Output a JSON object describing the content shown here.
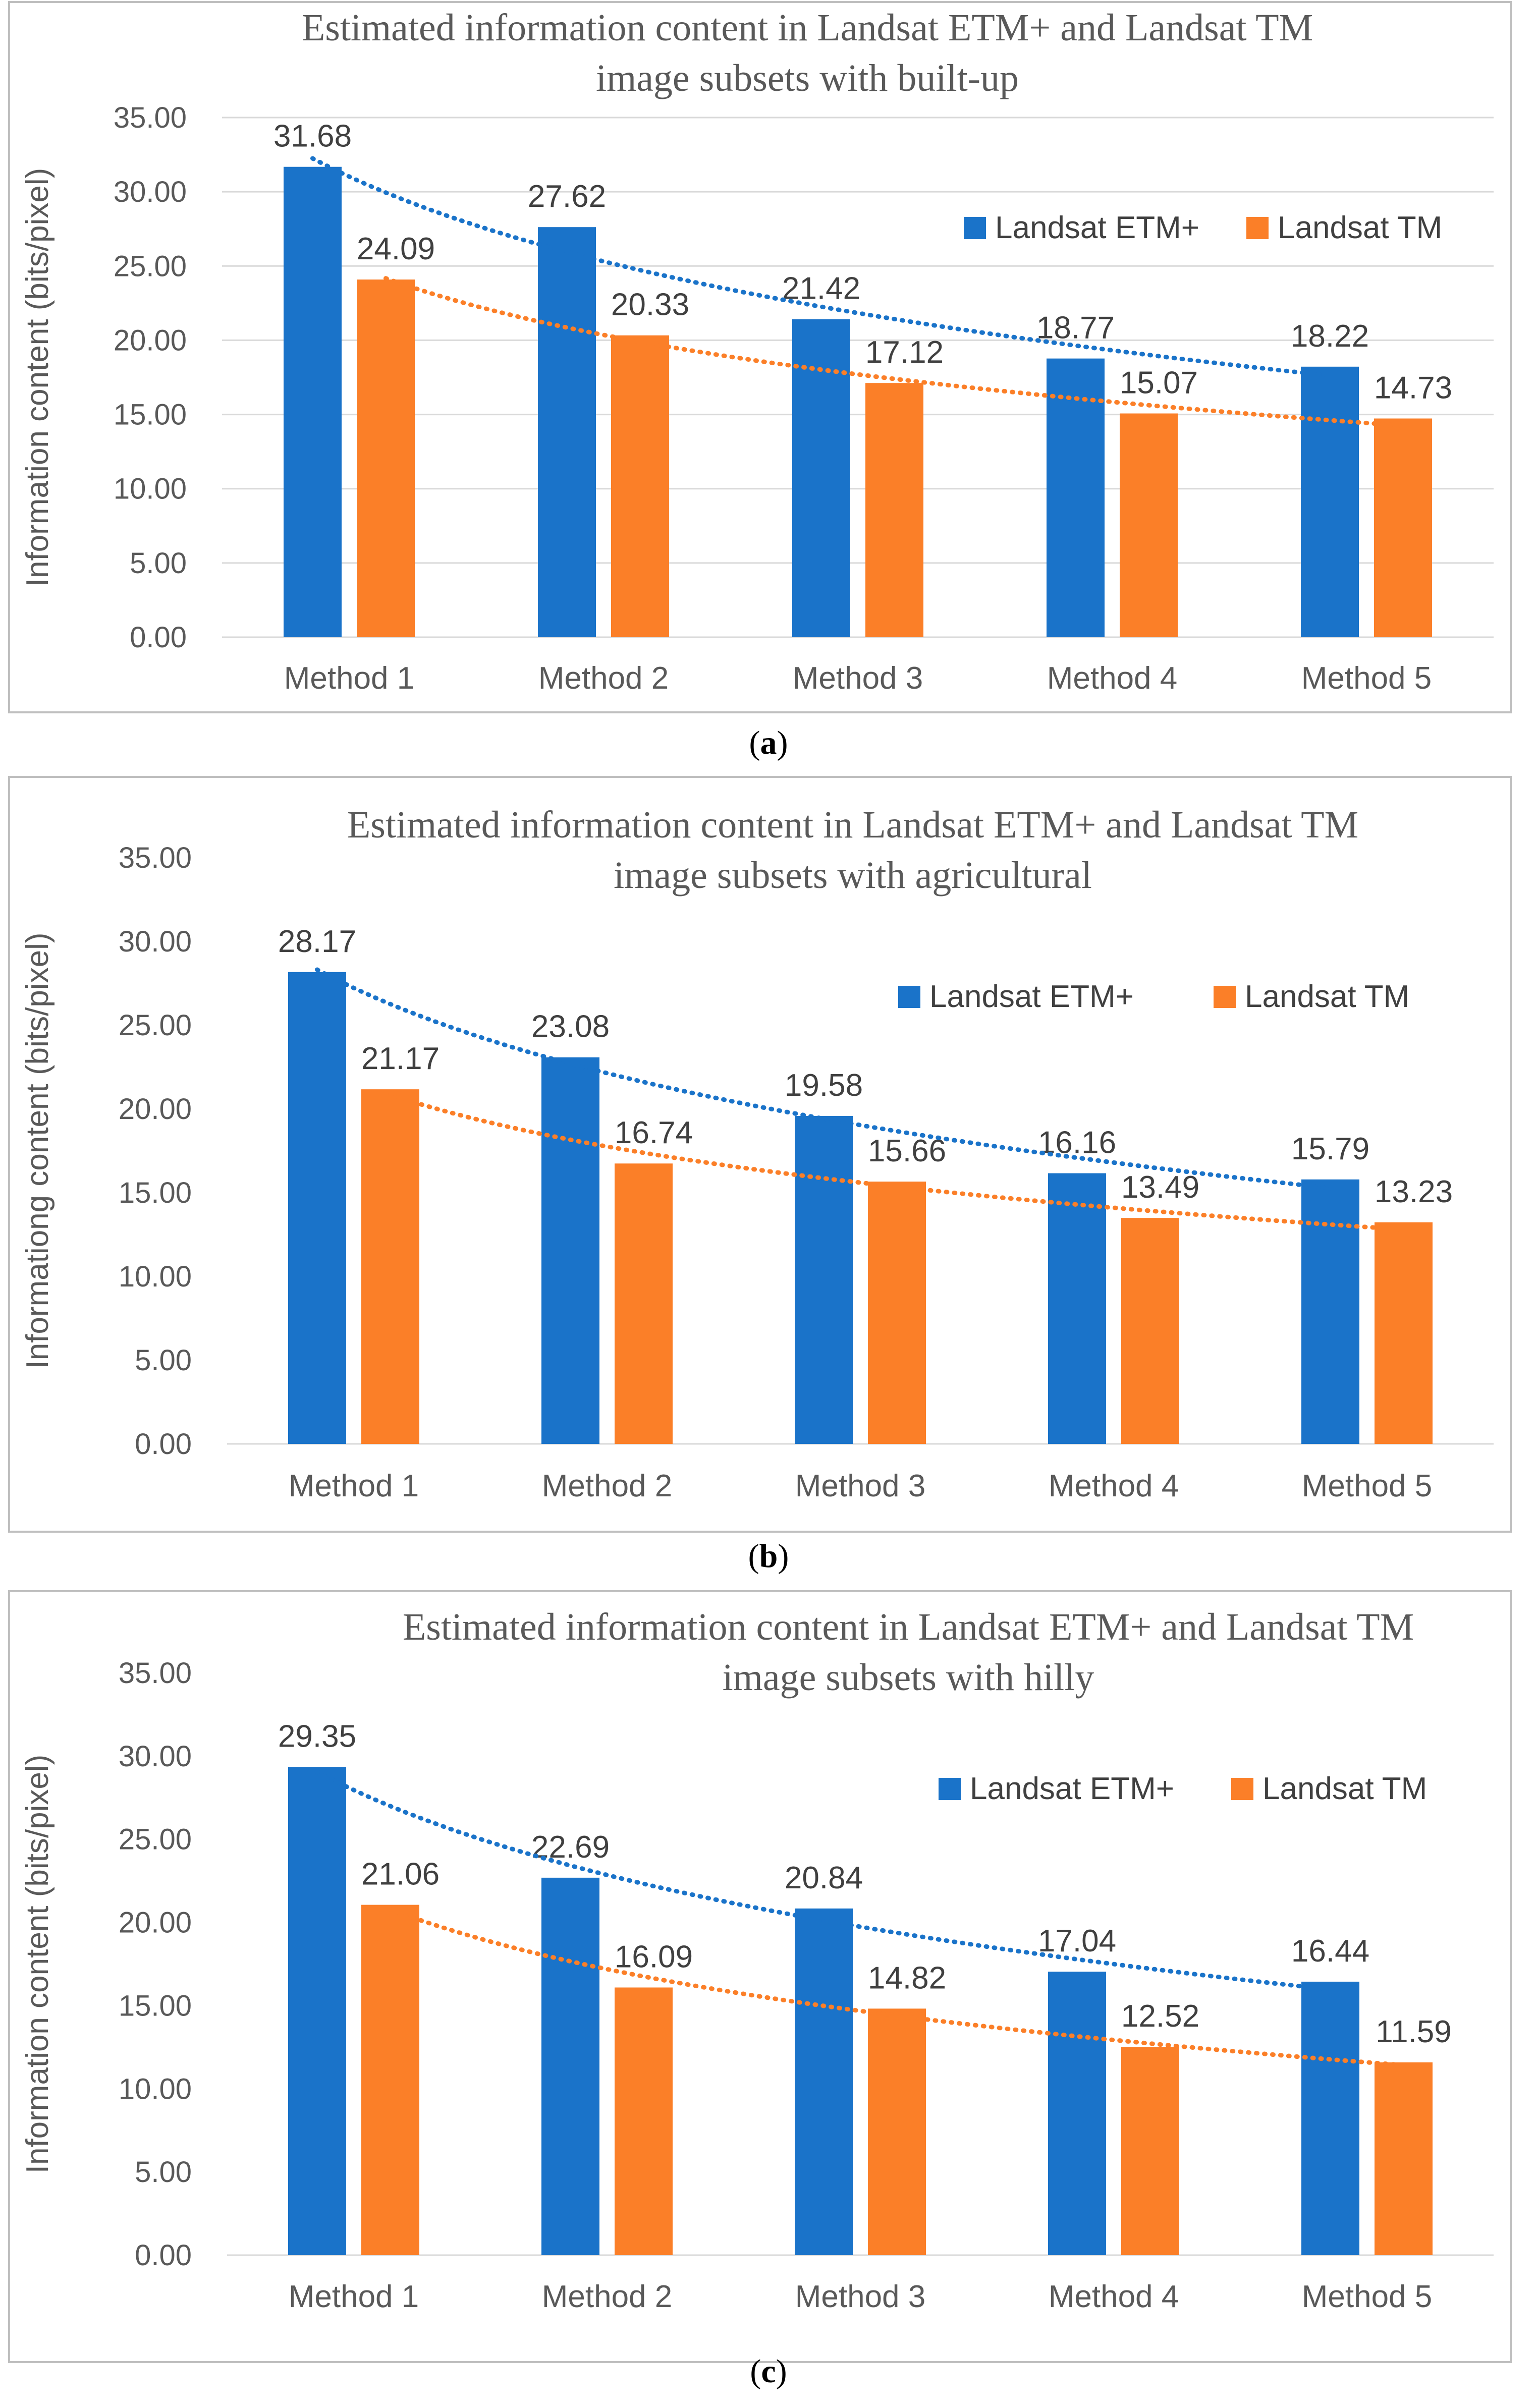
{
  "colors": {
    "etm": "#1a73c9",
    "tm": "#fb7f28",
    "grid": "#d9d9d9",
    "border": "#bfbfbf"
  },
  "chart_data": [
    {
      "type": "bar",
      "title_lines": [
        "Estimated information content in Landsat ETM+ and Landsat TM",
        "image subsets with built-up"
      ],
      "ylabel": "Information content (bits/pixel)",
      "xlabel": "",
      "ylim": [
        0,
        35
      ],
      "yticks": [
        "0.00",
        "5.00",
        "10.00",
        "15.00",
        "20.00",
        "25.00",
        "30.00",
        "35.00"
      ],
      "categories": [
        "Method 1",
        "Method 2",
        "Method 3",
        "Method 4",
        "Method 5"
      ],
      "series": [
        {
          "name": "Landsat ETM+",
          "values": [
            31.68,
            27.62,
            21.42,
            18.77,
            18.22
          ],
          "labels": [
            "31.68",
            "27.62",
            "21.42",
            "18.77",
            "18.22"
          ],
          "trendline": "dotted"
        },
        {
          "name": "Landsat TM",
          "values": [
            24.09,
            20.33,
            17.12,
            15.07,
            14.73
          ],
          "labels": [
            "24.09",
            "20.33",
            "17.12",
            "15.07",
            "14.73"
          ],
          "trendline": "dotted"
        }
      ],
      "legend": "top-right",
      "gridlines": true,
      "caption": "(a)"
    },
    {
      "type": "bar",
      "title_lines": [
        "Estimated information content in Landsat ETM+ and Landsat TM",
        "image subsets with agricultural"
      ],
      "ylabel": "Informationg content (bits/pixel)",
      "xlabel": "",
      "ylim": [
        0,
        35
      ],
      "yticks": [
        "0.00",
        "5.00",
        "10.00",
        "15.00",
        "20.00",
        "25.00",
        "30.00",
        "35.00"
      ],
      "categories": [
        "Method 1",
        "Method 2",
        "Method 3",
        "Method 4",
        "Method 5"
      ],
      "series": [
        {
          "name": "Landsat ETM+",
          "values": [
            28.17,
            23.08,
            19.58,
            16.16,
            15.79
          ],
          "labels": [
            "28.17",
            "23.08",
            "19.58",
            "16.16",
            "15.79"
          ],
          "trendline": "dotted"
        },
        {
          "name": "Landsat TM",
          "values": [
            21.17,
            16.74,
            15.66,
            13.49,
            13.23
          ],
          "labels": [
            "21.17",
            "16.74",
            "15.66",
            "13.49",
            "13.23"
          ],
          "trendline": "dotted"
        }
      ],
      "legend": "top-right",
      "gridlines": false,
      "caption": "(b)"
    },
    {
      "type": "bar",
      "title_lines": [
        "Estimated information content in Landsat ETM+ and Landsat TM",
        "image subsets with hilly"
      ],
      "ylabel": "Information content (bits/pixel)",
      "xlabel": "",
      "ylim": [
        0,
        35
      ],
      "yticks": [
        "0.00",
        "5.00",
        "10.00",
        "15.00",
        "20.00",
        "25.00",
        "30.00",
        "35.00"
      ],
      "categories": [
        "Method 1",
        "Method 2",
        "Method 3",
        "Method 4",
        "Method 5"
      ],
      "series": [
        {
          "name": "Landsat ETM+",
          "values": [
            29.35,
            22.69,
            20.84,
            17.04,
            16.44
          ],
          "labels": [
            "29.35",
            "22.69",
            "20.84",
            "17.04",
            "16.44"
          ],
          "trendline": "dotted"
        },
        {
          "name": "Landsat TM",
          "values": [
            21.06,
            16.09,
            14.82,
            12.52,
            11.59
          ],
          "labels": [
            "21.06",
            "16.09",
            "14.82",
            "12.52",
            "11.59"
          ],
          "trendline": "dotted"
        }
      ],
      "legend": "top-right",
      "gridlines": false,
      "caption": "(c)"
    }
  ]
}
